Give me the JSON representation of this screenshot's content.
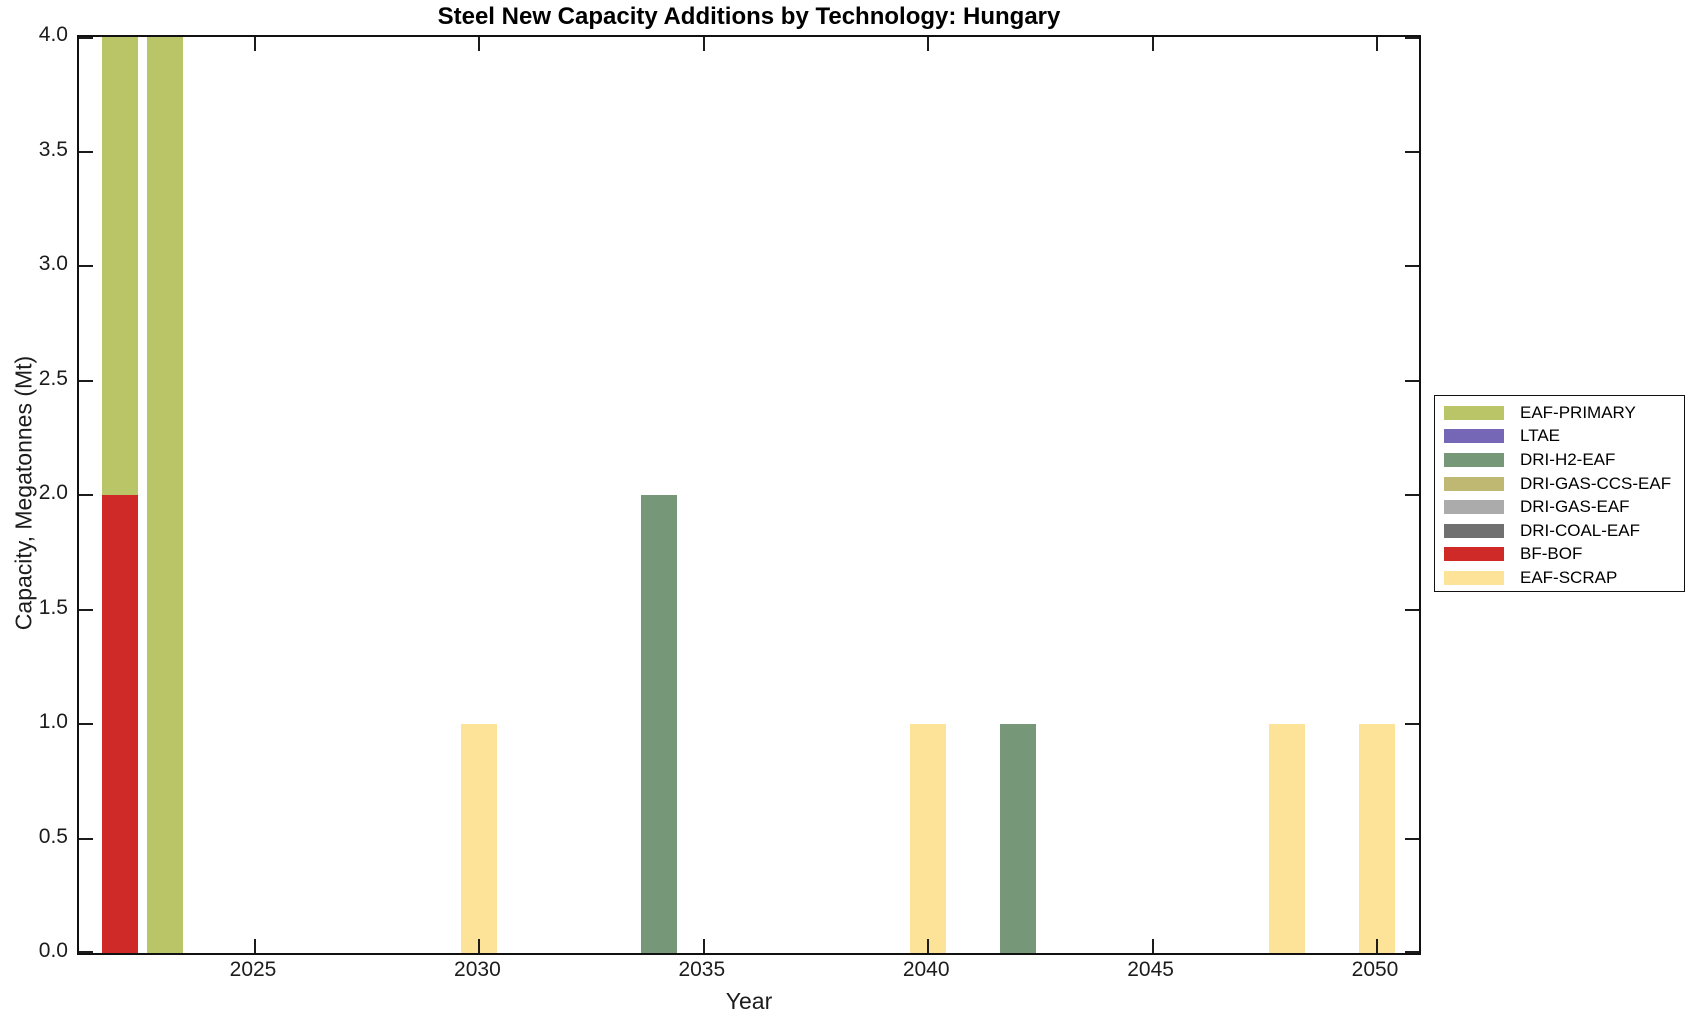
{
  "figure": {
    "background": "#ffffff",
    "axis_color": "#1c1c1c"
  },
  "chart_data": {
    "type": "bar",
    "stacked": true,
    "title": "Steel New Capacity Additions by Technology: Hungary",
    "xlabel": "Year",
    "ylabel": "Capacity, Megatonnes (Mt)",
    "xlim": [
      2021.1,
      2050.9
    ],
    "ylim": [
      0,
      4
    ],
    "xticks": [
      "2025",
      "2030",
      "2035",
      "2040",
      "2045",
      "2050"
    ],
    "yticks": [
      "0.0",
      "0.5",
      "1.0",
      "1.5",
      "2.0",
      "2.5",
      "3.0",
      "3.5",
      "4.0"
    ],
    "grid": false,
    "legend_position": "right-outside",
    "bar_width_years": 0.8,
    "legend": [
      {
        "label": "EAF-PRIMARY",
        "color": "#b9c566"
      },
      {
        "label": "LTAE",
        "color": "#7567b5"
      },
      {
        "label": "DRI-H2-EAF",
        "color": "#769878"
      },
      {
        "label": "DRI-GAS-CCS-EAF",
        "color": "#bfb873"
      },
      {
        "label": "DRI-GAS-EAF",
        "color": "#ababab"
      },
      {
        "label": "DRI-COAL-EAF",
        "color": "#707070"
      },
      {
        "label": "BF-BOF",
        "color": "#cf2a27"
      },
      {
        "label": "EAF-SCRAP",
        "color": "#fce398"
      }
    ],
    "bars": [
      {
        "year": 2022,
        "segments": [
          {
            "tech": "BF-BOF",
            "value": 2.0
          },
          {
            "tech": "EAF-PRIMARY",
            "value": 2.0
          }
        ]
      },
      {
        "year": 2023,
        "segments": [
          {
            "tech": "EAF-PRIMARY",
            "value": 4.0
          }
        ]
      },
      {
        "year": 2030,
        "segments": [
          {
            "tech": "EAF-SCRAP",
            "value": 1.0
          }
        ]
      },
      {
        "year": 2034,
        "segments": [
          {
            "tech": "DRI-H2-EAF",
            "value": 2.0
          }
        ]
      },
      {
        "year": 2040,
        "segments": [
          {
            "tech": "EAF-SCRAP",
            "value": 1.0
          }
        ]
      },
      {
        "year": 2042,
        "segments": [
          {
            "tech": "DRI-H2-EAF",
            "value": 1.0
          }
        ]
      },
      {
        "year": 2048,
        "segments": [
          {
            "tech": "EAF-SCRAP",
            "value": 1.0
          }
        ]
      },
      {
        "year": 2050,
        "segments": [
          {
            "tech": "EAF-SCRAP",
            "value": 1.0
          }
        ]
      }
    ]
  }
}
